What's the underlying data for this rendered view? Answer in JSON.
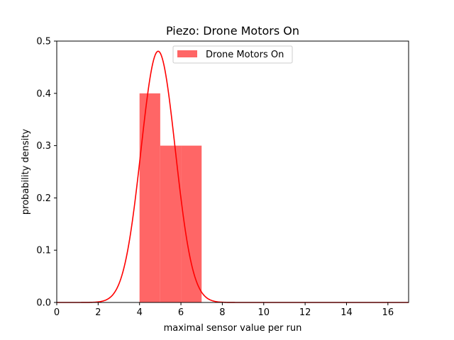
{
  "chart_data": {
    "type": "bar",
    "title": "Piezo: Drone Motors On",
    "xlabel": "maximal sensor value per run",
    "ylabel": "probability density",
    "xlim": [
      0,
      17
    ],
    "ylim": [
      0,
      0.5
    ],
    "xticks": [
      0,
      2,
      4,
      6,
      8,
      10,
      12,
      14,
      16
    ],
    "yticks": [
      0.0,
      0.1,
      0.2,
      0.3,
      0.4,
      0.5
    ],
    "xtick_labels": [
      "0",
      "2",
      "4",
      "6",
      "8",
      "10",
      "12",
      "14",
      "16"
    ],
    "ytick_labels": [
      "0.0",
      "0.1",
      "0.2",
      "0.3",
      "0.4",
      "0.5"
    ],
    "histogram": {
      "name": "Drone Motors On",
      "color": "#ff6666",
      "bins": [
        {
          "x0": 4,
          "x1": 5,
          "density": 0.4
        },
        {
          "x0": 5,
          "x1": 6,
          "density": 0.3
        },
        {
          "x0": 6,
          "x1": 7,
          "density": 0.3
        }
      ]
    },
    "fit_curve": {
      "type": "normal",
      "color": "#ff0000",
      "mean": 4.9,
      "std": 0.83
    },
    "legend": {
      "position": "top-center",
      "entries": [
        "Drone Motors On"
      ]
    },
    "grid": false
  }
}
